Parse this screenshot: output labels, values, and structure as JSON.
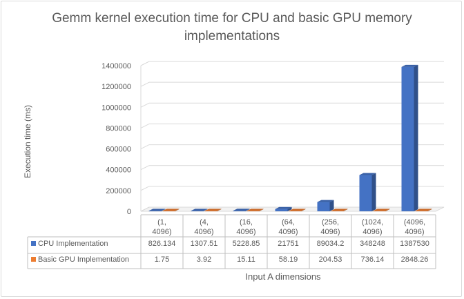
{
  "chart_data": {
    "type": "bar",
    "title": "Gemm kernel execution time for CPU and basic GPU  memory implementations",
    "xlabel": "Input A dimensions",
    "ylabel": "Execution time (ms)",
    "categories": [
      "(1, 4096)",
      "(4, 4096)",
      "(16, 4096)",
      "(64, 4096)",
      "(256, 4096)",
      "(1024, 4096)",
      "(4096, 4096)"
    ],
    "series": [
      {
        "name": "CPU Implementation",
        "color": "#4472c4",
        "values": [
          826.134,
          1307.51,
          5228.85,
          21751,
          89034.2,
          348248,
          1387530
        ],
        "labels": [
          "826.134",
          "1307.51",
          "5228.85",
          "21751",
          "89034.2",
          "348248",
          "1387530"
        ]
      },
      {
        "name": "Basic GPU Implementation",
        "color": "#ed7d31",
        "values": [
          1.75,
          3.92,
          15.11,
          58.19,
          204.53,
          736.14,
          2848.26
        ],
        "labels": [
          "1.75",
          "3.92",
          "15.11",
          "58.19",
          "204.53",
          "736.14",
          "2848.26"
        ]
      }
    ],
    "yticks": [
      "0",
      "200000",
      "400000",
      "600000",
      "800000",
      "1000000",
      "1200000",
      "1400000"
    ],
    "ylim": [
      0,
      1400000
    ],
    "grid": true,
    "legend": "data table"
  }
}
